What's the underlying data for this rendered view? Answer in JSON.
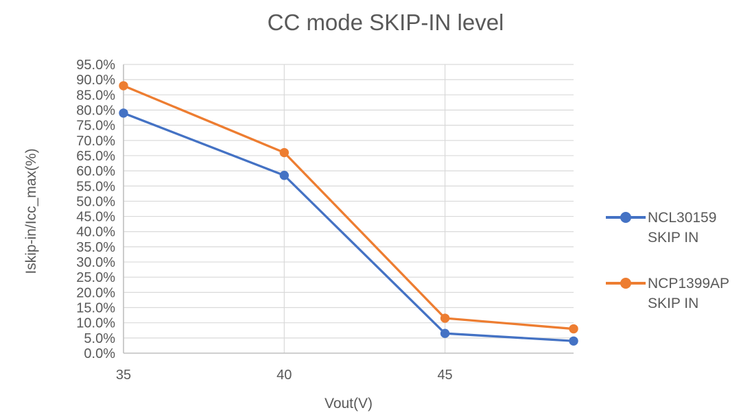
{
  "chart_data": {
    "type": "line",
    "title": "CC mode SKIP-IN level",
    "xlabel": "Vout(V)",
    "ylabel": "Iskip-in/Icc_max(%)",
    "x": [
      35,
      40,
      45,
      49
    ],
    "x_ticks": [
      35,
      40,
      45
    ],
    "xlim": [
      35,
      49
    ],
    "ylim": [
      0,
      95
    ],
    "y_tick_step": 5,
    "y_tick_suffix": "%",
    "y_tick_decimals": 1,
    "grid": true,
    "legend_position": "right",
    "series": [
      {
        "name": "NCL30159 SKIP IN",
        "legend_lines": [
          "NCL30159",
          "SKIP IN"
        ],
        "color": "#4472C4",
        "values": [
          79.0,
          58.5,
          6.5,
          4.0
        ]
      },
      {
        "name": "NCP1399AP SKIP IN",
        "legend_lines": [
          "NCP1399AP",
          "SKIP IN"
        ],
        "color": "#ED7D31",
        "values": [
          88.0,
          66.0,
          11.5,
          8.0
        ]
      }
    ]
  },
  "colors": {
    "text": "#595959",
    "gridline": "#D9D9D9",
    "axis": "#BFBFBF",
    "background": "#FFFFFF",
    "series_blue": "#4472C4",
    "series_orange": "#ED7D31"
  }
}
